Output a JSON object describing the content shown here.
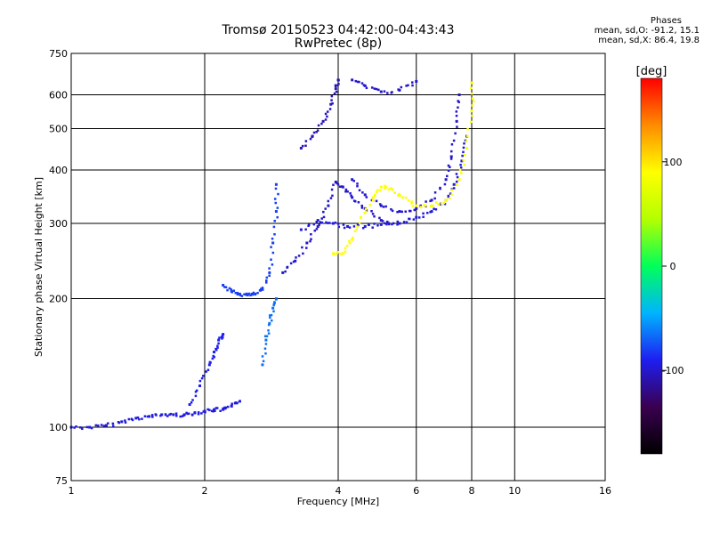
{
  "header": {
    "title": "Tromsø 20150523 04:42:00-04:43:43",
    "subtitle": "RwPretec (8p)",
    "stats_heading": "Phases",
    "stats_o": "mean, sd,O: -91.2, 15.1",
    "stats_x": "mean, sd,X:  86.4, 19.8"
  },
  "chart_data": {
    "type": "scatter",
    "title": "Tromsø 20150523 04:42:00-04:43:43",
    "subtitle": "RwPretec (8p)",
    "xlabel": "Frequency [MHz]",
    "ylabel": "Stationary phase Virtual Height [km]",
    "xscale": "log",
    "yscale": "log",
    "xlim": [
      1,
      16
    ],
    "ylim": [
      75,
      750
    ],
    "xticks": [
      1,
      2,
      4,
      6,
      8,
      10,
      16
    ],
    "yticks": [
      75,
      100,
      200,
      300,
      400,
      500,
      600,
      750
    ],
    "grid": true,
    "colorbar": {
      "label": "[deg]",
      "ticks": [
        100,
        0,
        -100
      ],
      "range": [
        -180,
        180
      ],
      "palette": [
        "#000000",
        "#3a0050",
        "#1e1ef0",
        "#00b4ff",
        "#00ff5a",
        "#b4ff00",
        "#ffff00",
        "#ff8c00",
        "#ff0000"
      ]
    },
    "series": [
      {
        "trace": "o-trace-low",
        "phase": -95,
        "points": [
          [
            1.0,
            100
          ],
          [
            1.1,
            100
          ],
          [
            1.2,
            101
          ],
          [
            1.3,
            103
          ],
          [
            1.4,
            105
          ],
          [
            1.5,
            106
          ],
          [
            1.6,
            107
          ],
          [
            1.7,
            107
          ],
          [
            1.8,
            107
          ],
          [
            1.9,
            108
          ],
          [
            2.0,
            109
          ],
          [
            2.1,
            110
          ],
          [
            2.2,
            110
          ],
          [
            2.3,
            112
          ],
          [
            2.4,
            115
          ]
        ]
      },
      {
        "trace": "o-trace-rise",
        "phase": -90,
        "points": [
          [
            1.85,
            113
          ],
          [
            1.95,
            125
          ],
          [
            2.05,
            140
          ],
          [
            2.1,
            150
          ],
          [
            2.15,
            160
          ],
          [
            2.2,
            165
          ]
        ]
      },
      {
        "trace": "o-trace-cusp-2.6",
        "phase": -80,
        "points": [
          [
            2.2,
            215
          ],
          [
            2.3,
            208
          ],
          [
            2.4,
            205
          ],
          [
            2.5,
            204
          ],
          [
            2.6,
            205
          ],
          [
            2.7,
            210
          ],
          [
            2.8,
            230
          ],
          [
            2.85,
            270
          ],
          [
            2.9,
            320
          ],
          [
            2.9,
            370
          ]
        ]
      },
      {
        "trace": "x-trace-rise",
        "phase": -65,
        "points": [
          [
            2.7,
            140
          ],
          [
            2.75,
            160
          ],
          [
            2.8,
            175
          ],
          [
            2.85,
            190
          ],
          [
            2.9,
            200
          ]
        ]
      },
      {
        "trace": "o-trace-f1",
        "phase": -100,
        "points": [
          [
            3.0,
            230
          ],
          [
            3.2,
            245
          ],
          [
            3.4,
            270
          ],
          [
            3.6,
            295
          ],
          [
            3.8,
            330
          ],
          [
            3.95,
            375
          ],
          [
            4.1,
            365
          ],
          [
            4.3,
            345
          ],
          [
            4.6,
            325
          ],
          [
            5.0,
            305
          ],
          [
            5.5,
            300
          ]
        ]
      },
      {
        "trace": "o-trace-f2",
        "phase": -95,
        "points": [
          [
            3.3,
            290
          ],
          [
            3.6,
            305
          ],
          [
            3.9,
            300
          ],
          [
            4.2,
            295
          ],
          [
            4.6,
            295
          ],
          [
            5.0,
            298
          ],
          [
            5.5,
            300
          ],
          [
            6.0,
            310
          ],
          [
            6.5,
            320
          ],
          [
            7.0,
            340
          ],
          [
            7.3,
            370
          ],
          [
            7.6,
            420
          ],
          [
            7.8,
            480
          ]
        ]
      },
      {
        "trace": "o-trace-f2-upper",
        "phase": -100,
        "points": [
          [
            4.3,
            380
          ],
          [
            4.6,
            350
          ],
          [
            5.0,
            330
          ],
          [
            5.5,
            320
          ],
          [
            6.0,
            325
          ],
          [
            6.5,
            340
          ],
          [
            7.0,
            380
          ],
          [
            7.2,
            430
          ],
          [
            7.4,
            520
          ],
          [
            7.5,
            600
          ]
        ]
      },
      {
        "trace": "o-trace-multihop",
        "phase": -105,
        "points": [
          [
            3.3,
            450
          ],
          [
            3.5,
            480
          ],
          [
            3.7,
            520
          ],
          [
            3.85,
            570
          ],
          [
            3.95,
            620
          ],
          [
            4.0,
            650
          ]
        ]
      },
      {
        "trace": "o-trace-multihop-upper",
        "phase": -100,
        "points": [
          [
            4.3,
            650
          ],
          [
            4.6,
            630
          ],
          [
            5.0,
            610
          ],
          [
            5.5,
            615
          ],
          [
            6.0,
            645
          ]
        ]
      },
      {
        "trace": "x-trace",
        "phase": 90,
        "points": [
          [
            3.9,
            255
          ],
          [
            4.1,
            255
          ],
          [
            4.3,
            275
          ],
          [
            4.5,
            310
          ],
          [
            4.8,
            345
          ],
          [
            5.0,
            365
          ],
          [
            5.3,
            360
          ],
          [
            5.6,
            345
          ],
          [
            6.0,
            330
          ],
          [
            6.5,
            330
          ],
          [
            7.0,
            340
          ],
          [
            7.5,
            380
          ],
          [
            7.8,
            450
          ],
          [
            8.0,
            550
          ],
          [
            8.0,
            640
          ]
        ]
      }
    ]
  }
}
